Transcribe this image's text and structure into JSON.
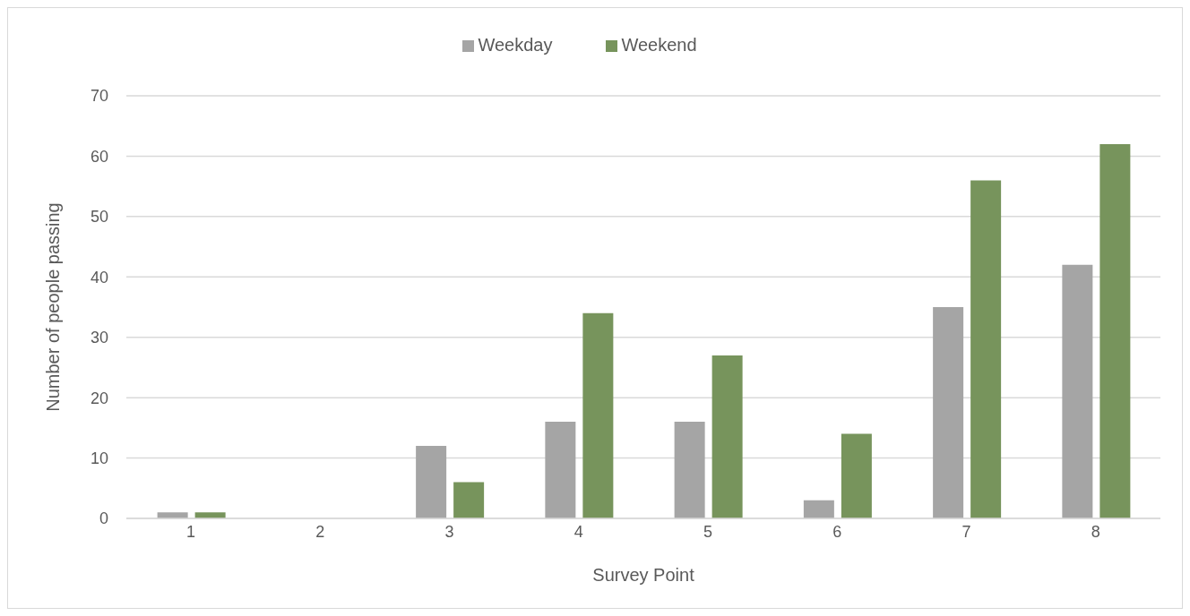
{
  "chart_data": {
    "type": "bar",
    "xlabel": "Survey Point",
    "ylabel": "Number of people passing",
    "categories": [
      "1",
      "2",
      "3",
      "4",
      "5",
      "6",
      "7",
      "8"
    ],
    "series": [
      {
        "name": "Weekday",
        "color": "#a5a5a5",
        "values": [
          1,
          0,
          12,
          16,
          16,
          3,
          35,
          42
        ]
      },
      {
        "name": "Weekend",
        "color": "#77945c",
        "values": [
          1,
          0,
          6,
          34,
          27,
          14,
          56,
          62
        ]
      }
    ],
    "ylim": [
      0,
      70
    ],
    "yticks": [
      0,
      10,
      20,
      30,
      40,
      50,
      60,
      70
    ],
    "grid": "y",
    "legend": "top"
  }
}
